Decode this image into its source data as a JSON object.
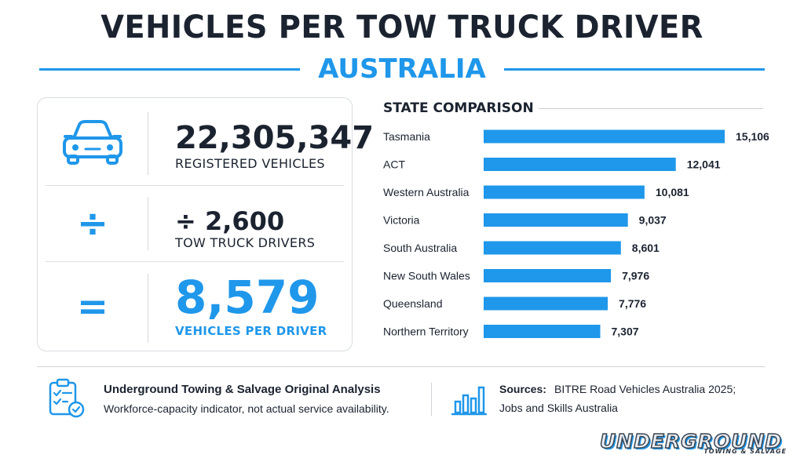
{
  "header": {
    "title": "VEHICLES PER TOW TRUCK DRIVER",
    "subtitle": "AUSTRALIA",
    "accent_color": "#1f97ea"
  },
  "calculation": {
    "vehicles": {
      "icon": "car-icon",
      "value": "22,305,347",
      "label": "REGISTERED VEHICLES"
    },
    "drivers": {
      "symbol": "÷",
      "value": "÷ 2,600",
      "label": "TOW TRUCK DRIVERS"
    },
    "result": {
      "symbol": "=",
      "value": "8,579",
      "label": "VEHICLES PER DRIVER"
    }
  },
  "chart_data": {
    "type": "bar",
    "orientation": "horizontal",
    "title": "STATE COMPARISON",
    "categories": [
      "Tasmania",
      "ACT",
      "Western Australia",
      "Victoria",
      "South Australia",
      "New South Wales",
      "Queensland",
      "Northern Territory"
    ],
    "values": [
      15106,
      12041,
      10081,
      9037,
      8601,
      7976,
      7776,
      7307
    ],
    "value_labels": [
      "15,106",
      "12,041",
      "10,081",
      "9,037",
      "8,601",
      "7,976",
      "7,776",
      "7,307"
    ],
    "xlim": [
      0,
      15106
    ],
    "bar_color": "#1f97ea",
    "grid": false,
    "legend": "none"
  },
  "footer": {
    "analysis_icon": "clipboard-check-icon",
    "analysis_title": "Underground Towing & Salvage Original Analysis",
    "analysis_text": "Workforce-capacity indicator, not actual service availability.",
    "sources_icon": "bar-chart-icon",
    "sources_label": "Sources:",
    "sources_line1": "BITRE Road Vehicles Australia 2025;",
    "sources_line2": "Jobs and Skills Australia"
  },
  "brand": {
    "name": "UNDERGROUND",
    "tagline": "TOWING & SALVAGE"
  }
}
